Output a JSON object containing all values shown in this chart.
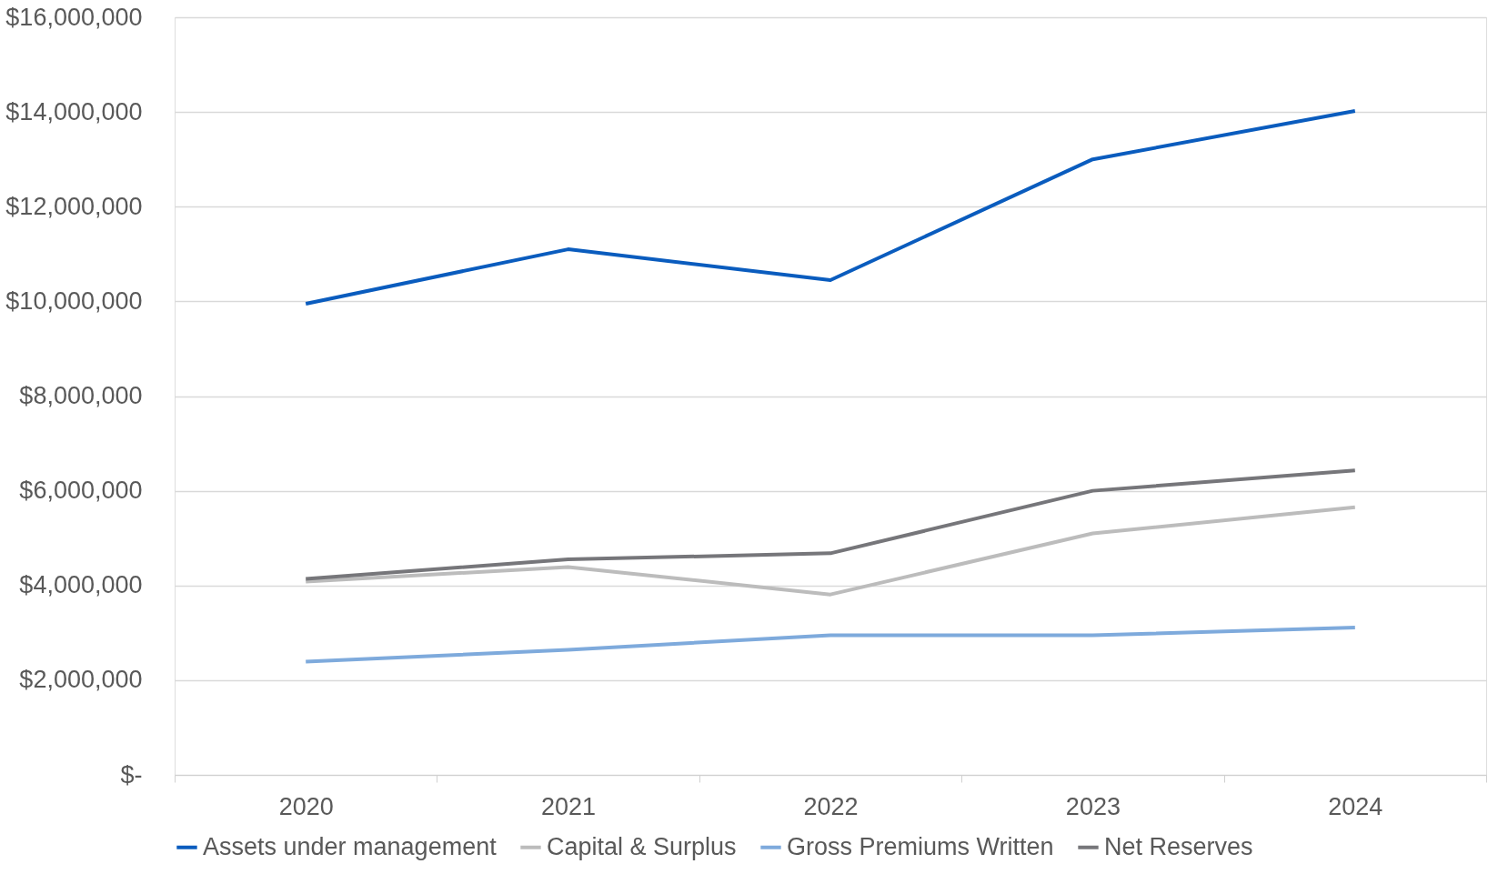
{
  "chart_data": {
    "type": "line",
    "categories": [
      "2020",
      "2021",
      "2022",
      "2023",
      "2024"
    ],
    "series": [
      {
        "name": "Assets under management",
        "color": "#0a5cbe",
        "values": [
          9950000,
          11100000,
          10450000,
          13000000,
          14020000
        ]
      },
      {
        "name": "Capital & Surplus",
        "color": "#bcbcbc",
        "values": [
          4080000,
          4390000,
          3810000,
          5100000,
          5650000
        ]
      },
      {
        "name": "Gross Premiums Written",
        "color": "#7eaadc",
        "values": [
          2390000,
          2640000,
          2950000,
          2950000,
          3110000
        ]
      },
      {
        "name": "Net Reserves",
        "color": "#76767a",
        "values": [
          4140000,
          4550000,
          4680000,
          6000000,
          6430000
        ]
      }
    ],
    "ylim": [
      0,
      16000000
    ],
    "yticks": [
      {
        "value": 0,
        "label": "$-"
      },
      {
        "value": 2000000,
        "label": "$2,000,000"
      },
      {
        "value": 4000000,
        "label": "$4,000,000"
      },
      {
        "value": 6000000,
        "label": "$6,000,000"
      },
      {
        "value": 8000000,
        "label": "$8,000,000"
      },
      {
        "value": 10000000,
        "label": "$10,000,000"
      },
      {
        "value": 12000000,
        "label": "$12,000,000"
      },
      {
        "value": 14000000,
        "label": "$14,000,000"
      },
      {
        "value": 16000000,
        "label": "$16,000,000"
      }
    ],
    "grid": "y",
    "legend": "bottom",
    "marker": "none",
    "line_style": "solid"
  }
}
